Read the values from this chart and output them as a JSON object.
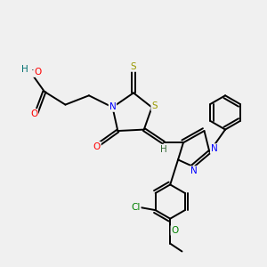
{
  "bg_color": "#f0f0f0",
  "bond_color": "#000000",
  "bond_width": 1.4,
  "dbo": 0.055,
  "figsize": [
    3.0,
    3.0
  ],
  "dpi": 100,
  "xlim": [
    0,
    10
  ],
  "ylim": [
    0,
    10
  ]
}
